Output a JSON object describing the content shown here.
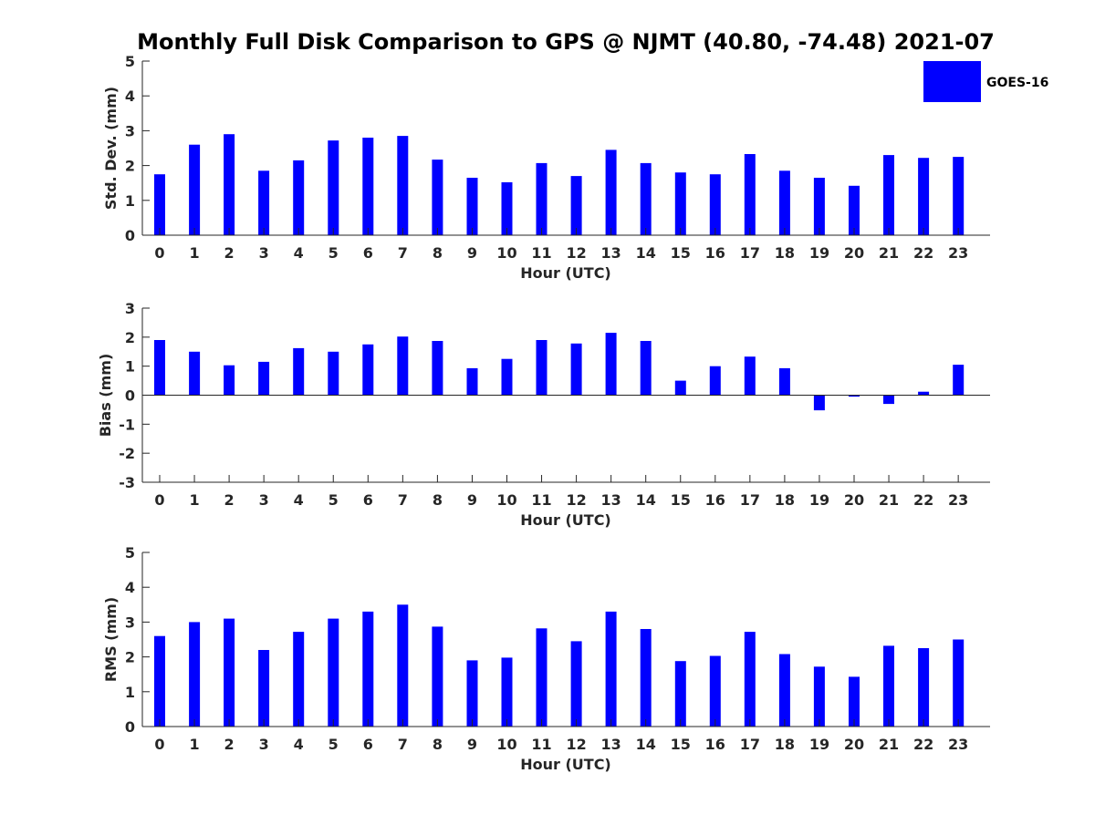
{
  "title": "Monthly Full Disk Comparison to GPS @ NJMT (40.80, -74.48) 2021-07",
  "legend": {
    "label": "GOES-16",
    "color": "#0000ff",
    "placement": "top-right"
  },
  "chart_data": [
    {
      "type": "bar",
      "ylabel": "Std. Dev. (mm)",
      "xlabel": "Hour (UTC)",
      "ylim": [
        0,
        5
      ],
      "yticks": [
        "0",
        "1",
        "2",
        "3",
        "4",
        "5"
      ],
      "categories": [
        "0",
        "1",
        "2",
        "3",
        "4",
        "5",
        "6",
        "7",
        "8",
        "9",
        "10",
        "11",
        "12",
        "13",
        "14",
        "15",
        "16",
        "17",
        "18",
        "19",
        "20",
        "21",
        "22",
        "23"
      ],
      "series": [
        {
          "name": "GOES-16",
          "values": [
            1.75,
            2.6,
            2.9,
            1.85,
            2.15,
            2.72,
            2.8,
            2.85,
            2.17,
            1.65,
            1.52,
            2.07,
            1.7,
            2.45,
            2.07,
            1.8,
            1.75,
            2.33,
            1.85,
            1.65,
            1.42,
            2.3,
            2.22,
            2.25
          ]
        }
      ]
    },
    {
      "type": "bar",
      "ylabel": "Bias (mm)",
      "xlabel": "Hour (UTC)",
      "ylim": [
        -3,
        3
      ],
      "yticks": [
        "-3",
        "-2",
        "-1",
        "0",
        "1",
        "2",
        "3"
      ],
      "categories": [
        "0",
        "1",
        "2",
        "3",
        "4",
        "5",
        "6",
        "7",
        "8",
        "9",
        "10",
        "11",
        "12",
        "13",
        "14",
        "15",
        "16",
        "17",
        "18",
        "19",
        "20",
        "21",
        "22",
        "23"
      ],
      "series": [
        {
          "name": "GOES-16",
          "values": [
            1.9,
            1.5,
            1.03,
            1.15,
            1.62,
            1.5,
            1.75,
            2.02,
            1.87,
            0.93,
            1.25,
            1.9,
            1.78,
            2.15,
            1.87,
            0.5,
            1.0,
            1.33,
            0.93,
            -0.52,
            -0.05,
            -0.3,
            0.12,
            1.05
          ]
        }
      ]
    },
    {
      "type": "bar",
      "ylabel": "RMS (mm)",
      "xlabel": "Hour (UTC)",
      "ylim": [
        0,
        5
      ],
      "yticks": [
        "0",
        "1",
        "2",
        "3",
        "4",
        "5"
      ],
      "categories": [
        "0",
        "1",
        "2",
        "3",
        "4",
        "5",
        "6",
        "7",
        "8",
        "9",
        "10",
        "11",
        "12",
        "13",
        "14",
        "15",
        "16",
        "17",
        "18",
        "19",
        "20",
        "21",
        "22",
        "23"
      ],
      "series": [
        {
          "name": "GOES-16",
          "values": [
            2.6,
            3.0,
            3.1,
            2.2,
            2.72,
            3.1,
            3.3,
            3.5,
            2.87,
            1.9,
            1.98,
            2.82,
            2.45,
            3.3,
            2.8,
            1.88,
            2.03,
            2.72,
            2.08,
            1.72,
            1.43,
            2.32,
            2.25,
            2.5
          ]
        }
      ]
    }
  ]
}
